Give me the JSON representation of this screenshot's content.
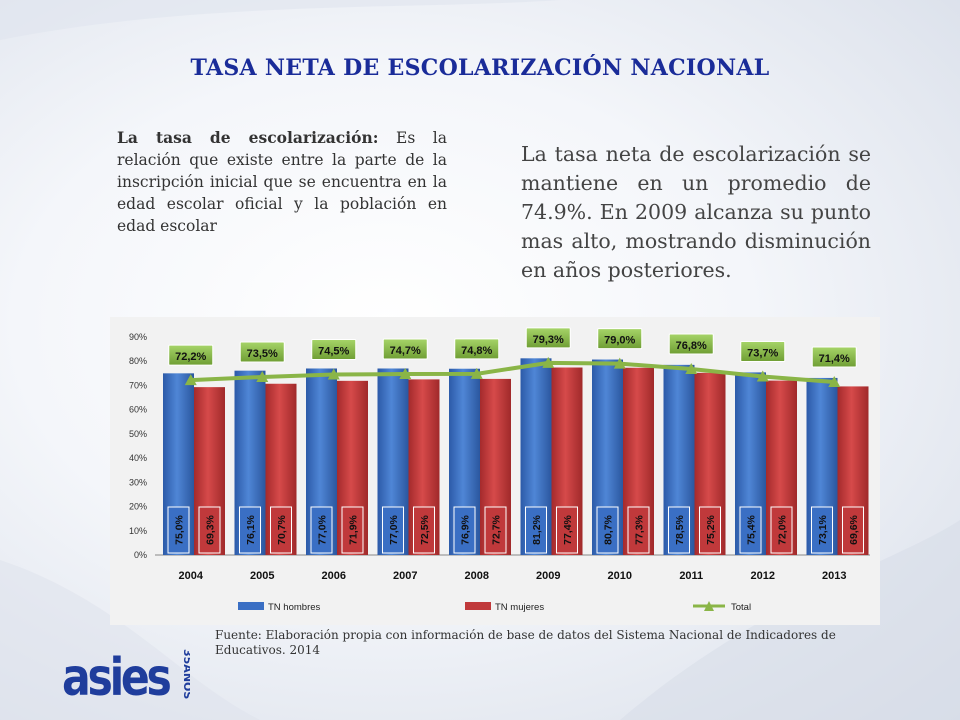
{
  "slide": {
    "title": "TASA NETA DE ESCOLARIZACIÓN NACIONAL",
    "definition_term": "La tasa de escolarización:",
    "definition_text": " Es la relación que existe entre la parte de la inscripción inicial que se encuentra en la edad escolar oficial y la población en edad escolar",
    "summary": "La tasa neta de escolarización se mantiene en un promedio de 74.9%. En 2009 alcanza su punto mas alto, mostrando disminución en años posteriores.",
    "source": "Fuente: Elaboración propia con información de base de datos del Sistema Nacional de Indicadores de Educativos. 2014",
    "logo_text": "asies",
    "logo_sub": "35AÑOS"
  },
  "colors": {
    "title": "#1a2c99",
    "hombres": "#3a6fc4",
    "mujeres": "#c0393b",
    "total_line": "#8ab547",
    "total_label_bg": "#8bbf4a",
    "logo": "#1f3d9c"
  },
  "chart_data": {
    "type": "bar",
    "categories": [
      "2004",
      "2005",
      "2006",
      "2007",
      "2008",
      "2009",
      "2010",
      "2011",
      "2012",
      "2013"
    ],
    "ylim": [
      0,
      90
    ],
    "yticks": [
      "0%",
      "10%",
      "20%",
      "30%",
      "40%",
      "50%",
      "60%",
      "70%",
      "80%",
      "90%"
    ],
    "series": [
      {
        "name": "TN hombres",
        "type": "bar",
        "values": [
          75.0,
          76.1,
          77.0,
          77.0,
          76.9,
          81.2,
          80.7,
          78.5,
          75.4,
          73.1
        ],
        "labels": [
          "75,0%",
          "76,1%",
          "77,0%",
          "77,0%",
          "76,9%",
          "81,2%",
          "80,7%",
          "78,5%",
          "75,4%",
          "73,1%"
        ]
      },
      {
        "name": "TN mujeres",
        "type": "bar",
        "values": [
          69.3,
          70.7,
          71.9,
          72.5,
          72.7,
          77.4,
          77.3,
          75.2,
          72.0,
          69.6
        ],
        "labels": [
          "69,3%",
          "70,7%",
          "71,9%",
          "72,5%",
          "72,7%",
          "77,4%",
          "77,3%",
          "75,2%",
          "72,0%",
          "69,6%"
        ]
      },
      {
        "name": "Total",
        "type": "line",
        "values": [
          72.2,
          73.5,
          74.5,
          74.7,
          74.8,
          79.3,
          79.0,
          76.8,
          73.7,
          71.4
        ],
        "labels": [
          "72,2%",
          "73,5%",
          "74,5%",
          "74,7%",
          "74,8%",
          "79,3%",
          "79,0%",
          "76,8%",
          "73,7%",
          "71,4%"
        ]
      }
    ],
    "legend": "bottom",
    "grid": false
  }
}
